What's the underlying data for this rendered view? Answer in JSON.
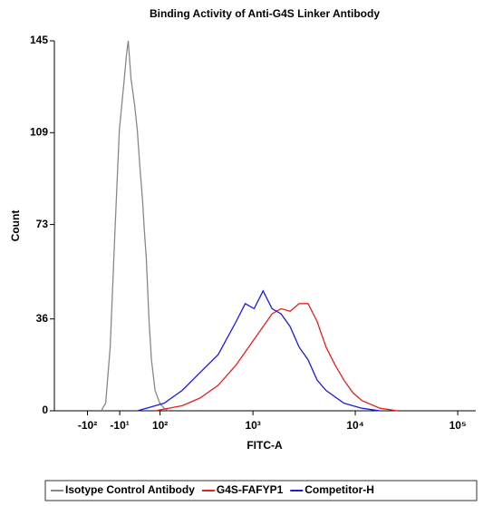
{
  "chart_data": {
    "type": "line",
    "title": "Binding Activity of Anti-G4S Linker Antibody",
    "xlabel": "FITC-A",
    "ylabel": "Count",
    "xscale": "biexponential",
    "xlim": [
      -250,
      150000
    ],
    "ylim": [
      0,
      145
    ],
    "xticks": [
      {
        "value": -100,
        "label": "-10²"
      },
      {
        "value": -10,
        "label": "-10¹"
      },
      {
        "value": 100,
        "label": "10²"
      },
      {
        "value": 1000,
        "label": "10³"
      },
      {
        "value": 10000,
        "label": "10⁴"
      },
      {
        "value": 100000,
        "label": "10⁵"
      }
    ],
    "yticks": [
      0,
      36,
      73,
      109,
      145
    ],
    "series": [
      {
        "name": "Isotype Control Antibody",
        "color": "#888888",
        "x": [
          -58,
          -46,
          -34,
          -22,
          -11,
          0,
          7,
          11,
          18,
          27,
          34,
          41,
          48,
          53,
          58,
          66,
          73,
          84,
          99,
          114,
          131
        ],
        "values": [
          0,
          3,
          25,
          70,
          110,
          128,
          140,
          145,
          130,
          120,
          110,
          95,
          82,
          70,
          60,
          35,
          20,
          8,
          3,
          1,
          0
        ]
      },
      {
        "name": "G4S-FAFYP1",
        "color": "#e8201c",
        "x": [
          84,
          190,
          296,
          452,
          683,
          1027,
          1540,
          1885,
          2310,
          2825,
          3460,
          4235,
          5180,
          6340,
          7750,
          9500,
          11600,
          17400,
          26000
        ],
        "values": [
          0,
          2,
          5,
          10,
          18,
          28,
          38,
          40,
          39,
          42,
          42,
          35,
          25,
          18,
          12,
          7,
          4,
          1,
          0
        ]
      },
      {
        "name": "Competitor-H",
        "color": "#1a1ae6",
        "x": [
          34,
          58,
          114,
          190,
          296,
          452,
          683,
          839,
          1027,
          1257,
          1540,
          1885,
          2310,
          2825,
          3460,
          4235,
          5180,
          7750,
          11600,
          17400
        ],
        "values": [
          0,
          1,
          3,
          8,
          15,
          22,
          35,
          42,
          40,
          47,
          40,
          38,
          33,
          25,
          20,
          12,
          8,
          3,
          1,
          0
        ]
      }
    ]
  }
}
